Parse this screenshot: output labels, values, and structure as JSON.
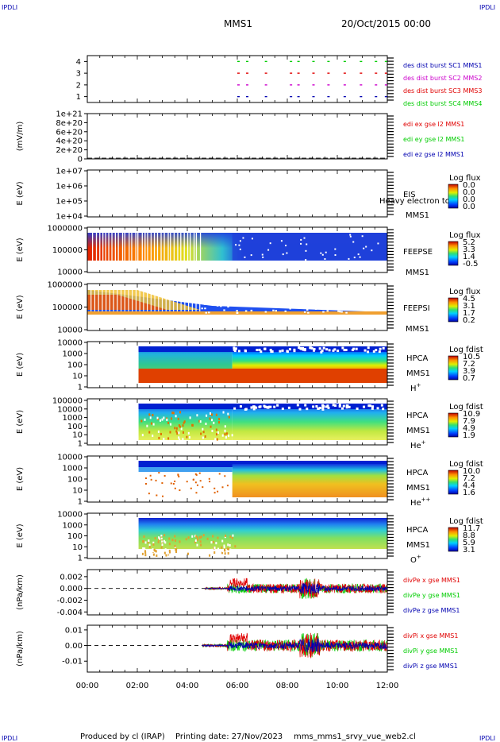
{
  "header": {
    "corner_label": "IPDLI",
    "mission": "MMS1",
    "date": "20/Oct/2015 00:00"
  },
  "footer": {
    "produced_by": "Produced by cl (IRAP)",
    "printing_date": "Printing date: 27/Nov/2023",
    "filename": "mms_mms1_srvy_vue_web2.cl"
  },
  "x_axis": {
    "ticks": [
      "00:00",
      "02:00",
      "04:00",
      "06:00",
      "08:00",
      "10:00",
      "12:00"
    ],
    "range_hours": [
      0,
      12
    ]
  },
  "colors": {
    "red": "#e00000",
    "green": "#00cc00",
    "blue": "#0000b0",
    "magenta": "#cc00cc",
    "black": "#000000"
  },
  "chart_data": [
    {
      "type": "scatter",
      "panel": "burst",
      "ylim": [
        0.5,
        4.5
      ],
      "yticks": [
        "1",
        "2",
        "3",
        "4"
      ],
      "ylabel": "",
      "legend": [
        {
          "name": "des dist burst SC1 MMS1",
          "color": "#0000b0"
        },
        {
          "name": "des dist burst SC2 MMS2",
          "color": "#cc00cc"
        },
        {
          "name": "des dist burst SC3 MMS3",
          "color": "#e00000"
        },
        {
          "name": "des dist burst SC4 MMS4",
          "color": "#00cc00"
        }
      ],
      "burst_times_hours": [
        6.0,
        6.35,
        7.1,
        8.1,
        8.4,
        9.0,
        9.6,
        10.25,
        10.9,
        11.5,
        11.9
      ]
    },
    {
      "type": "line",
      "panel": "edi",
      "ylabel": "(mV/m)",
      "yticks": [
        "0",
        "2e+20",
        "4e+20",
        "6e+20",
        "8e+20",
        "1e+21"
      ],
      "ylim": [
        0,
        1e+21
      ],
      "series": [
        {
          "name": "edi ex gse l2 MMS1",
          "color": "#e00000"
        },
        {
          "name": "edi ey gse l2 MMS1",
          "color": "#00cc00"
        },
        {
          "name": "edi ez gse l2 MMS1",
          "color": "#0000b0"
        }
      ]
    },
    {
      "type": "heatmap",
      "panel": "eis",
      "ylabel": "E (eV)",
      "yticks": [
        "1e+07",
        "1e+06",
        "1e+05",
        "1e+04"
      ],
      "instrument": "EIS",
      "mission": "MMS1",
      "overlay_text": "Heavy electron to",
      "colorbar_title": "Log flux",
      "colorbar_ticks": [
        "0.0",
        "0.0",
        "0.0",
        "0.0"
      ]
    },
    {
      "type": "heatmap",
      "panel": "feepse",
      "ylabel": "E (eV)",
      "yticks": [
        "1000000",
        "100000",
        "10000"
      ],
      "instrument": "FEEPSE",
      "mission": "MMS1",
      "colorbar_title": "Log flux",
      "colorbar_ticks": [
        "5.2",
        "3.3",
        "1.4",
        "-0.5"
      ]
    },
    {
      "type": "heatmap",
      "panel": "feepsi",
      "ylabel": "E (eV)",
      "yticks": [
        "1000000",
        "100000",
        "10000"
      ],
      "instrument": "FEEPSI",
      "mission": "MMS1",
      "colorbar_title": "Log flux",
      "colorbar_ticks": [
        "4.5",
        "3.1",
        "1.7",
        "0.2"
      ]
    },
    {
      "type": "heatmap",
      "panel": "hpca_h",
      "ylabel": "E (eV)",
      "yticks": [
        "10000",
        "1000",
        "100",
        "10",
        "1"
      ],
      "instrument": "HPCA",
      "mission": "MMS1",
      "species": "H",
      "species_sup": "+",
      "colorbar_title": "Log fdist",
      "colorbar_ticks": [
        "10.5",
        "7.2",
        "3.9",
        "0.7"
      ]
    },
    {
      "type": "heatmap",
      "panel": "hpca_he",
      "ylabel": "E (eV)",
      "yticks": [
        "100000",
        "10000",
        "1000",
        "100",
        "10",
        "1"
      ],
      "instrument": "HPCA",
      "mission": "MMS1",
      "species": "He",
      "species_sup": "+",
      "colorbar_title": "Log fdist",
      "colorbar_ticks": [
        "10.9",
        "7.9",
        "4.9",
        "1.9"
      ]
    },
    {
      "type": "heatmap",
      "panel": "hpca_hepp",
      "ylabel": "E (eV)",
      "yticks": [
        "10000",
        "1000",
        "100",
        "10",
        "1"
      ],
      "instrument": "HPCA",
      "mission": "MMS1",
      "species": "He",
      "species_sup": "++",
      "colorbar_title": "Log fdist",
      "colorbar_ticks": [
        "10.0",
        "7.2",
        "4.4",
        "1.6"
      ]
    },
    {
      "type": "heatmap",
      "panel": "hpca_o",
      "ylabel": "E (eV)",
      "yticks": [
        "10000",
        "1000",
        "100",
        "10",
        "1"
      ],
      "instrument": "HPCA",
      "mission": "MMS1",
      "species": "O",
      "species_sup": "+",
      "colorbar_title": "Log fdist",
      "colorbar_ticks": [
        "11.7",
        "8.8",
        "5.9",
        "3.1"
      ]
    },
    {
      "type": "line",
      "panel": "divpe",
      "ylabel": "(nPa/km)",
      "yticks": [
        "0.002",
        "0.000",
        "-0.002",
        "-0.004"
      ],
      "ylim": [
        -0.0045,
        0.0032
      ],
      "series": [
        {
          "name": "divPe x gse MMS1",
          "color": "#e00000"
        },
        {
          "name": "divPe y gse MMS1",
          "color": "#00cc00"
        },
        {
          "name": "divPe z gse MMS1",
          "color": "#0000b0"
        }
      ]
    },
    {
      "type": "line",
      "panel": "divpi",
      "ylabel": "(nPa/km)",
      "yticks": [
        "0.01",
        "0.00",
        "-0.01"
      ],
      "ylim": [
        -0.017,
        0.013
      ],
      "series": [
        {
          "name": "divPi x gse MMS1",
          "color": "#e00000"
        },
        {
          "name": "divPi y gse MMS1",
          "color": "#00cc00"
        },
        {
          "name": "divPi z gse MMS1",
          "color": "#0000b0"
        }
      ]
    }
  ]
}
